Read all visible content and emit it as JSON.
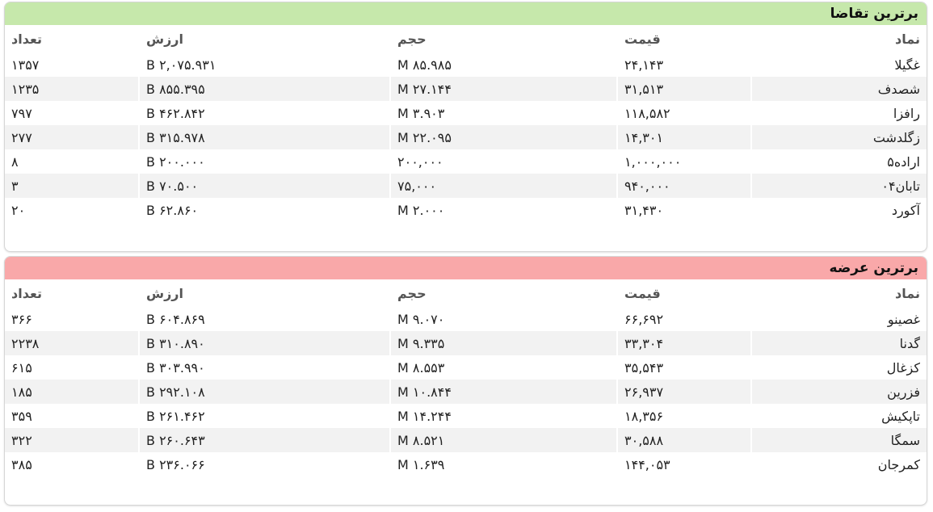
{
  "demand": {
    "title": "برترین تقاضا",
    "headers": {
      "symbol": "نماد",
      "price": "قیمت",
      "volume": "حجم",
      "value": "ارزش",
      "count": "تعداد"
    },
    "rows": [
      {
        "symbol": "غگیلا",
        "price": "۲۴,۱۴۳",
        "volume": "۸۵.۹۸۵ M",
        "value": "۲,۰۷۵.۹۳۱ B",
        "count": "۱۳۵۷"
      },
      {
        "symbol": "شصدف",
        "price": "۳۱,۵۱۳",
        "volume": "۲۷.۱۴۴ M",
        "value": "۸۵۵.۳۹۵ B",
        "count": "۱۲۳۵"
      },
      {
        "symbol": "رافزا",
        "price": "۱۱۸,۵۸۲",
        "volume": "۳.۹۰۳ M",
        "value": "۴۶۲.۸۴۲ B",
        "count": "۷۹۷"
      },
      {
        "symbol": "زگلدشت",
        "price": "۱۴,۳۰۱",
        "volume": "۲۲.۰۹۵ M",
        "value": "۳۱۵.۹۷۸ B",
        "count": "۲۷۷"
      },
      {
        "symbol": "اراده۵",
        "price": "۱,۰۰۰,۰۰۰",
        "volume": "۲۰۰,۰۰۰",
        "value": "۲۰۰.۰۰۰ B",
        "count": "۸"
      },
      {
        "symbol": "تابان۰۴",
        "price": "۹۴۰,۰۰۰",
        "volume": "۷۵,۰۰۰",
        "value": "۷۰.۵۰۰ B",
        "count": "۳"
      },
      {
        "symbol": "آکورد",
        "price": "۳۱,۴۳۰",
        "volume": "۲.۰۰۰ M",
        "value": "۶۲.۸۶۰ B",
        "count": "۲۰"
      }
    ]
  },
  "supply": {
    "title": "برترین عرضه",
    "headers": {
      "symbol": "نماد",
      "price": "قیمت",
      "volume": "حجم",
      "value": "ارزش",
      "count": "تعداد"
    },
    "rows": [
      {
        "symbol": "غصینو",
        "price": "۶۶,۶۹۲",
        "volume": "۹.۰۷۰ M",
        "value": "۶۰۴.۸۶۹ B",
        "count": "۳۶۶"
      },
      {
        "symbol": "گدنا",
        "price": "۳۳,۳۰۴",
        "volume": "۹.۳۳۵ M",
        "value": "۳۱۰.۸۹۰ B",
        "count": "۲۲۳۸"
      },
      {
        "symbol": "کزغال",
        "price": "۳۵,۵۴۳",
        "volume": "۸.۵۵۳ M",
        "value": "۳۰۳.۹۹۰ B",
        "count": "۶۱۵"
      },
      {
        "symbol": "فزرین",
        "price": "۲۶,۹۳۷",
        "volume": "۱۰.۸۴۴ M",
        "value": "۲۹۲.۱۰۸ B",
        "count": "۱۸۵"
      },
      {
        "symbol": "تاپکیش",
        "price": "۱۸,۳۵۶",
        "volume": "۱۴.۲۴۴ M",
        "value": "۲۶۱.۴۶۲ B",
        "count": "۳۵۹"
      },
      {
        "symbol": "سمگا",
        "price": "۳۰,۵۸۸",
        "volume": "۸.۵۲۱ M",
        "value": "۲۶۰.۶۴۳ B",
        "count": "۳۲۲"
      },
      {
        "symbol": "کمرجان",
        "price": "۱۴۴,۰۵۳",
        "volume": "۱.۶۳۹ M",
        "value": "۲۳۶.۰۶۶ B",
        "count": "۳۸۵"
      }
    ]
  }
}
